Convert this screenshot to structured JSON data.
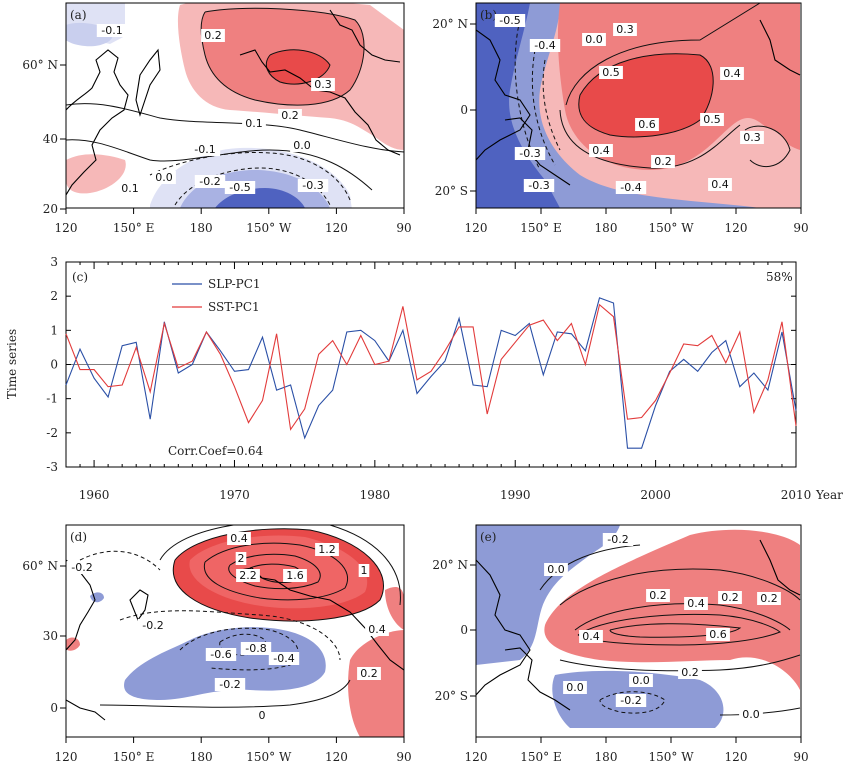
{
  "colors": {
    "pos_strong": "#e84a4a",
    "pos_mid": "#ef8080",
    "pos_light": "#f6b8b8",
    "neg_strong": "#4f62c0",
    "neg_mid": "#8e9bd6",
    "neg_light": "#c9cfee",
    "slp_line": "#2a4fa6",
    "sst_line": "#e23b3b"
  },
  "panels": {
    "a": {
      "label": "(a)",
      "x_ticks": [
        "120",
        "150° E",
        "180",
        "150° W",
        "120",
        "90"
      ],
      "y_ticks": [
        "60° N",
        "40",
        "20"
      ],
      "contour_labels": [
        "-0.1",
        "0.2",
        "0.3",
        "0.2",
        "0.1",
        "0.0",
        "-0.1",
        "0.0",
        "-0.2",
        "-0.5",
        "-0.3",
        "0.1"
      ]
    },
    "b": {
      "label": "(b)",
      "x_ticks": [
        "120",
        "150° E",
        "180",
        "150° W",
        "120",
        "90"
      ],
      "y_ticks": [
        "20° N",
        "0",
        "20° S"
      ],
      "contour_labels": [
        "-0.5",
        "-0.4",
        "0.0",
        "0.3",
        "0.4",
        "0.5",
        "0.6",
        "0.5",
        "0.3",
        "0.4",
        "0.2",
        "-0.4",
        "0.4",
        "-0.3",
        "-0.3"
      ]
    },
    "d": {
      "label": "(d)",
      "x_ticks": [
        "120",
        "150° E",
        "180",
        "150° W",
        "120",
        "90"
      ],
      "y_ticks": [
        "60° N",
        "30",
        "0"
      ],
      "contour_labels": [
        "0.4",
        "-0.2",
        "2",
        "2.2",
        "1.6",
        "1.2",
        "1",
        "-0.2",
        "-0.8",
        "-0.6",
        "-0.4",
        "-0.2",
        "0.4",
        "0.2",
        "0"
      ]
    },
    "e": {
      "label": "(e)",
      "x_ticks": [
        "120",
        "150° E",
        "180",
        "150° W",
        "120",
        "90"
      ],
      "y_ticks": [
        "20° N",
        "0",
        "20° S"
      ],
      "contour_labels": [
        "-0.2",
        "0.0",
        "0.2",
        "0.4",
        "0.2",
        "0.2",
        "0.4",
        "0.6",
        "0.2",
        "0.0",
        "-0.2",
        "0.0",
        "0.0"
      ]
    }
  },
  "chart_data": {
    "type": "line",
    "panel_label": "(c)",
    "title": "",
    "xlabel": "Year",
    "ylabel": "Time series",
    "xlim": [
      1958,
      2010
    ],
    "ylim": [
      -3,
      3
    ],
    "x_ticks": [
      1960,
      1970,
      1980,
      1990,
      2000,
      2010
    ],
    "y_ticks": [
      3,
      2,
      1,
      0,
      -1,
      -2,
      -3
    ],
    "variance_text": "58%",
    "corr_text": "Corr.Coef=0.64",
    "x": [
      1958,
      1959,
      1960,
      1961,
      1962,
      1963,
      1964,
      1965,
      1966,
      1967,
      1968,
      1969,
      1970,
      1971,
      1972,
      1973,
      1974,
      1975,
      1976,
      1977,
      1978,
      1979,
      1980,
      1981,
      1982,
      1983,
      1984,
      1985,
      1986,
      1987,
      1988,
      1989,
      1990,
      1991,
      1992,
      1993,
      1994,
      1995,
      1996,
      1997,
      1998,
      1999,
      2000,
      2001,
      2002,
      2003,
      2004,
      2005,
      2006,
      2007,
      2008,
      2009,
      2010
    ],
    "series": [
      {
        "name": "SLP-PC1",
        "values": [
          -0.6,
          0.45,
          -0.4,
          -0.95,
          0.55,
          0.65,
          -1.6,
          1.25,
          -0.25,
          0.0,
          0.95,
          0.4,
          -0.2,
          -0.15,
          0.8,
          -0.75,
          -0.6,
          -2.15,
          -1.2,
          -0.75,
          0.95,
          1.0,
          0.7,
          0.1,
          1.0,
          -0.85,
          -0.35,
          0.1,
          1.35,
          -0.6,
          -0.65,
          1.0,
          0.85,
          1.2,
          -0.3,
          0.95,
          0.9,
          0.4,
          1.95,
          1.8,
          -2.45,
          -2.45,
          -1.2,
          -0.2,
          0.15,
          -0.2,
          0.35,
          0.7,
          -0.65,
          -0.25,
          -0.75,
          0.95,
          -1.35
        ]
      },
      {
        "name": "SST-PC1",
        "values": [
          0.9,
          -0.15,
          -0.15,
          -0.65,
          -0.6,
          0.5,
          -0.8,
          1.2,
          -0.1,
          0.1,
          0.95,
          0.3,
          -0.65,
          -1.7,
          -1.05,
          0.9,
          -1.9,
          -1.3,
          0.3,
          0.7,
          0.0,
          0.85,
          0.0,
          0.1,
          1.7,
          -0.45,
          -0.2,
          0.4,
          1.1,
          1.1,
          -1.45,
          0.15,
          0.65,
          1.15,
          1.3,
          0.7,
          1.2,
          0.0,
          1.75,
          1.4,
          -1.6,
          -1.55,
          -1.05,
          -0.25,
          0.6,
          0.55,
          0.85,
          0.05,
          0.95,
          -1.4,
          -0.45,
          1.25,
          -1.8
        ]
      }
    ]
  }
}
